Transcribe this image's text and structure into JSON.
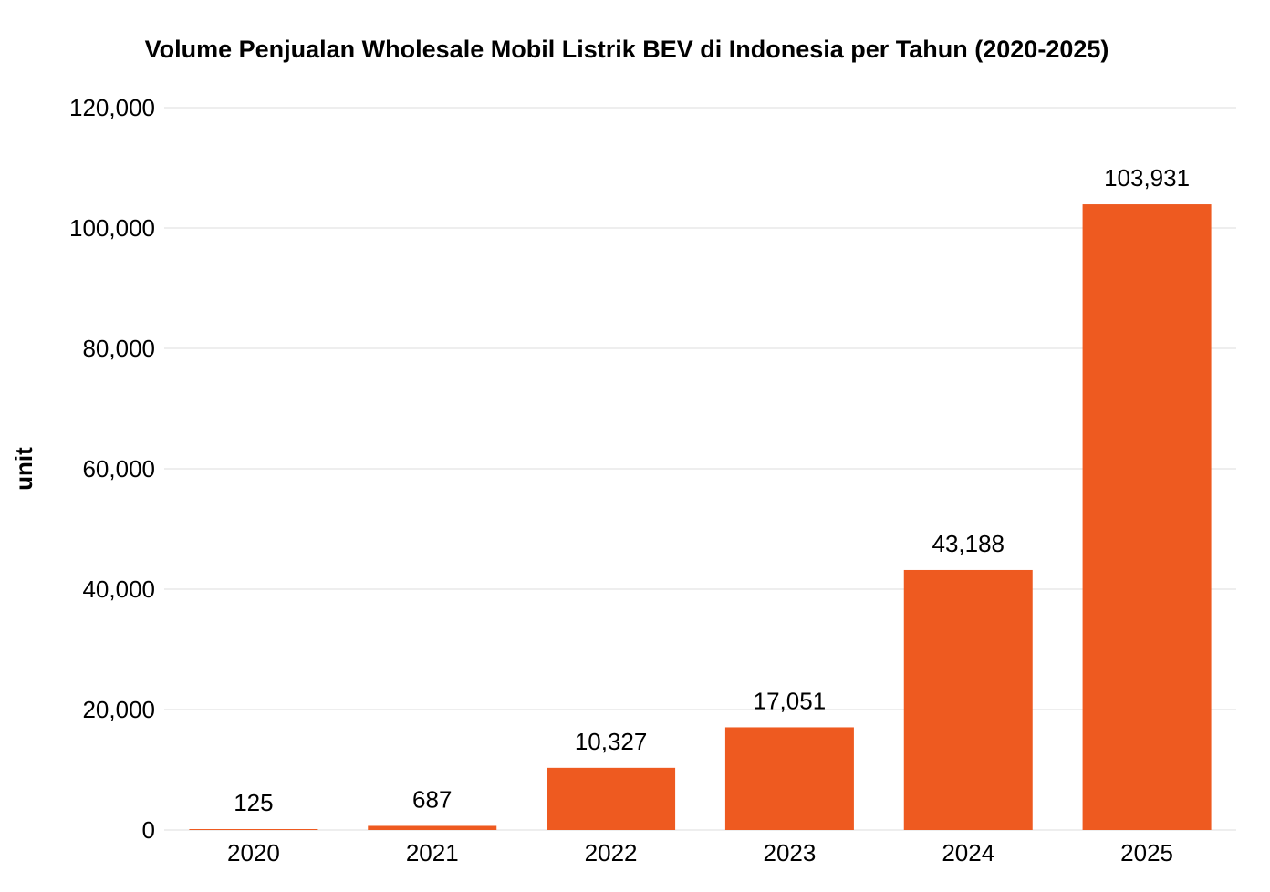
{
  "chart_data": {
    "type": "bar",
    "title": "Volume Penjualan Wholesale Mobil Listrik BEV di Indonesia per Tahun (2020-2025)",
    "xlabel": "",
    "ylabel": "unit",
    "categories": [
      "2020",
      "2021",
      "2022",
      "2023",
      "2024",
      "2025"
    ],
    "values": [
      125,
      687,
      10327,
      17051,
      43188,
      103931
    ],
    "data_labels": [
      "125",
      "687",
      "10,327",
      "17,051",
      "43,188",
      "103,931"
    ],
    "ylim": [
      0,
      120000
    ],
    "yticks": [
      0,
      20000,
      40000,
      60000,
      80000,
      100000,
      120000
    ],
    "ytick_labels": [
      "0",
      "20,000",
      "40,000",
      "60,000",
      "80,000",
      "100,000",
      "120,000"
    ],
    "grid": true,
    "legend": "none",
    "bar_color": "#ee5a20"
  }
}
